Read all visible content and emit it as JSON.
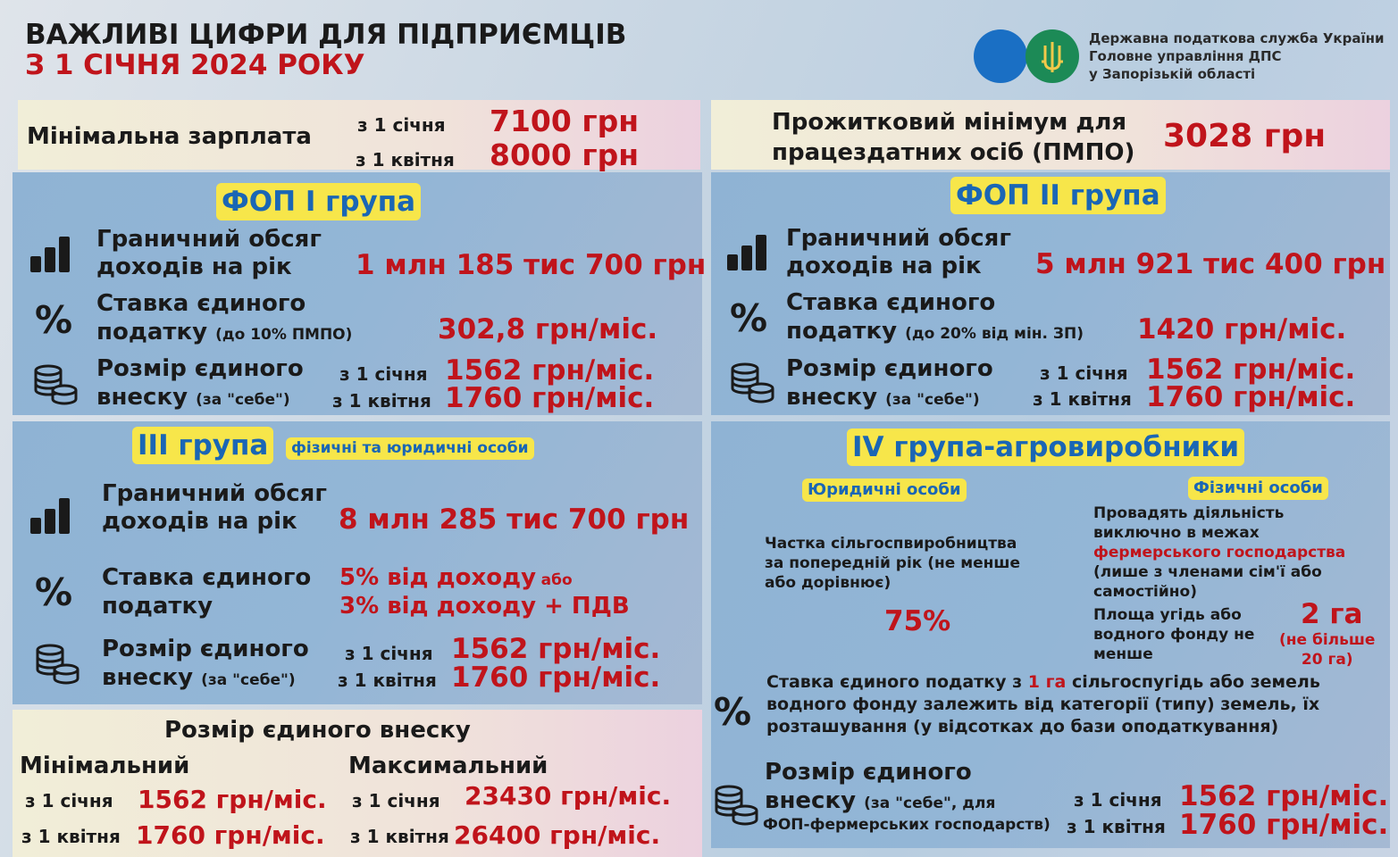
{
  "header": {
    "title_line1": "ВАЖЛИВІ ЦИФРИ ДЛЯ ПІДПРИЄМЦІВ",
    "title_line2": "З 1 СІЧНЯ 2024 РОКУ",
    "org_line1": "Державна податкова служба України",
    "org_line2": "Головне управління ДПС",
    "org_line3": "у Запорізькій області"
  },
  "min_wage": {
    "label": "Мінімальна зарплата",
    "from_jan": "з 1 січня",
    "from_apr": "з 1 квітня",
    "value_jan": "7100 грн",
    "value_apr": "8000 грн"
  },
  "living_min": {
    "label_line1": "Прожитковий мінімум для",
    "label_line2": "працездатних осіб (ПМПО)",
    "value": "3028 грн"
  },
  "group1": {
    "title": "ФОП І група",
    "limit_line1": "Граничний обсяг",
    "limit_line2": "доходів на рік",
    "limit_value": "1 млн 185 тис 700 грн",
    "rate_line1": "Ставка єдиного",
    "rate_line2": "податку",
    "rate_note": "(до 10% ПМПО)",
    "rate_value": "302,8 грн/міс.",
    "contrib_line1": "Розмір єдиного",
    "contrib_line2": "внеску",
    "contrib_note": "(за \"себе\")",
    "from_jan": "з 1 січня",
    "from_apr": "з 1 квітня",
    "contrib_jan": "1562 грн/міс.",
    "contrib_apr": "1760 грн/міс."
  },
  "group2": {
    "title": "ФОП ІІ група",
    "limit_line1": "Граничний обсяг",
    "limit_line2": "доходів на рік",
    "limit_value": "5 млн 921 тис 400 грн",
    "rate_line1": "Ставка єдиного",
    "rate_line2": "податку",
    "rate_note": "(до 20% від мін. ЗП)",
    "rate_value": "1420 грн/міс.",
    "contrib_line1": "Розмір єдиного",
    "contrib_line2": "внеску",
    "contrib_note": "(за \"себе\")",
    "from_jan": "з 1 січня",
    "from_apr": "з 1 квітня",
    "contrib_jan": "1562 грн/міс.",
    "contrib_apr": "1760 грн/міс."
  },
  "group3": {
    "title": "ІІІ група",
    "subtitle": "фізичні та юридичні особи",
    "limit_line1": "Граничний обсяг",
    "limit_line2": "доходів на рік",
    "limit_value": "8 млн 285 тис 700 грн",
    "rate_line1": "Ставка єдиного",
    "rate_line2": "податку",
    "rate_value1": "5% від доходу",
    "rate_or": "або",
    "rate_value2": "3% від доходу + ПДВ",
    "contrib_line1": "Розмір єдиного",
    "contrib_line2": "внеску",
    "contrib_note": "(за \"себе\")",
    "from_jan": "з 1 січня",
    "from_apr": "з 1 квітня",
    "contrib_jan": "1562 грн/міс.",
    "contrib_apr": "1760 грн/міс."
  },
  "contribution_size": {
    "title": "Розмір єдиного внеску",
    "min_label": "Мінімальний",
    "max_label": "Максимальний",
    "from_jan": "з 1 січня",
    "from_apr": "з 1 квітня",
    "min_jan": "1562 грн/міс.",
    "min_apr": "1760 грн/міс.",
    "max_jan": "23430 грн/міс.",
    "max_apr": "26400 грн/міс."
  },
  "group4": {
    "title": "IV група-агровиробники",
    "legal_tag": "Юридичні особи",
    "physical_tag": "Фізичні особи",
    "legal_text_line1": "Частка сільгоспвиробництва",
    "legal_text_line2": "за попередній рік (не менше",
    "legal_text_line3": "або дорівнює)",
    "legal_value": "75%",
    "phys_text_line1": "Провадять діяльність",
    "phys_text_line2": "виключно в межах",
    "phys_text_red": "фермерського господарства",
    "phys_text_line4": "(лише з членами сім'ї або",
    "phys_text_line5": "самостійно)",
    "area_line1": "Площа угідь або",
    "area_line2": "водного фонду не",
    "area_line3": "менше",
    "area_value": "2 га",
    "area_note_line1": "(не  більше",
    "area_note_line2": "20 га)",
    "rate_line1_a": "Ставка єдиного податку з ",
    "rate_line1_red": "1 га",
    "rate_line1_b": " сільгоспугідь або земель",
    "rate_line2": "водного фонду залежить від категорії (типу) земель, їх",
    "rate_line3": "розташування (у відсотках до бази оподаткування)",
    "contrib_line1": "Розмір єдиного",
    "contrib_line2": "внеску",
    "contrib_note_line1": "(за \"себе\", для",
    "contrib_note_line2": "ФОП-фермерських господарств)",
    "from_jan": "з 1 січня",
    "from_apr": "з 1 квітня",
    "contrib_jan": "1562 грн/міс.",
    "contrib_apr": "1760 грн/міс."
  },
  "icons": {
    "chart": "bar-chart-icon",
    "percent": "percent-icon",
    "coins": "coins-icon",
    "logo_blue": "dps-circle-logo",
    "logo_trident": "trident-logo"
  },
  "colors": {
    "accent_red": "#c0141b",
    "tag_yellow": "#f7e64a",
    "tag_text_blue": "#1a66b5",
    "logo_blue": "#1a6fc4",
    "logo_green": "#1c8a56"
  }
}
